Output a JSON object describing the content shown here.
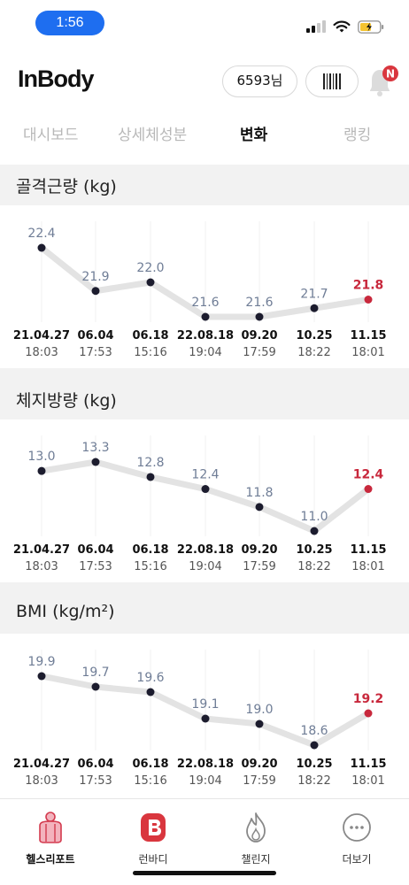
{
  "status_bar": {
    "time": "1:56"
  },
  "header": {
    "logo": "InBody",
    "user_label": "6593님",
    "notification_badge": "N"
  },
  "tabs": [
    {
      "label": "대시보드",
      "active": false
    },
    {
      "label": "상세체성분",
      "active": false
    },
    {
      "label": "변화",
      "active": true
    },
    {
      "label": "랭킹",
      "active": false
    }
  ],
  "colors": {
    "point": "#1c1c2e",
    "latest": "#c8283c",
    "line": "#e3e3e3",
    "value_text": "#6f7d96"
  },
  "chart_data": [
    {
      "type": "line",
      "title": "골격근량 (kg)",
      "dates": [
        "21.04.27",
        "06.04",
        "06.18",
        "22.08.18",
        "09.20",
        "10.25",
        "11.15"
      ],
      "times": [
        "18:03",
        "17:53",
        "15:16",
        "19:04",
        "17:59",
        "18:22",
        "18:01"
      ],
      "values": [
        22.4,
        21.9,
        22.0,
        21.6,
        21.6,
        21.7,
        21.8
      ],
      "labels": [
        "22.4",
        "21.9",
        "22.0",
        "21.6",
        "21.6",
        "21.7",
        "21.8"
      ],
      "ylim": [
        21.6,
        22.4
      ]
    },
    {
      "type": "line",
      "title": "체지방량 (kg)",
      "dates": [
        "21.04.27",
        "06.04",
        "06.18",
        "22.08.18",
        "09.20",
        "10.25",
        "11.15"
      ],
      "times": [
        "18:03",
        "17:53",
        "15:16",
        "19:04",
        "17:59",
        "18:22",
        "18:01"
      ],
      "values": [
        13.0,
        13.3,
        12.8,
        12.4,
        11.8,
        11.0,
        12.4
      ],
      "labels": [
        "13.0",
        "13.3",
        "12.8",
        "12.4",
        "11.8",
        "11.0",
        "12.4"
      ],
      "ylim": [
        11.0,
        13.3
      ]
    },
    {
      "type": "line",
      "title": "BMI (kg/m²)",
      "dates": [
        "21.04.27",
        "06.04",
        "06.18",
        "22.08.18",
        "09.20",
        "10.25",
        "11.15"
      ],
      "times": [
        "18:03",
        "17:53",
        "15:16",
        "19:04",
        "17:59",
        "18:22",
        "18:01"
      ],
      "values": [
        19.9,
        19.7,
        19.6,
        19.1,
        19.0,
        18.6,
        19.2
      ],
      "labels": [
        "19.9",
        "19.7",
        "19.6",
        "19.1",
        "19.0",
        "18.6",
        "19.2"
      ],
      "ylim": [
        18.6,
        19.9
      ]
    }
  ],
  "bottom_nav": [
    {
      "label": "헬스리포트",
      "icon": "health-report-icon",
      "active": true
    },
    {
      "label": "런바디",
      "icon": "runbody-icon",
      "active": false
    },
    {
      "label": "챌린지",
      "icon": "flame-icon",
      "active": false
    },
    {
      "label": "더보기",
      "icon": "more-icon",
      "active": false
    }
  ]
}
